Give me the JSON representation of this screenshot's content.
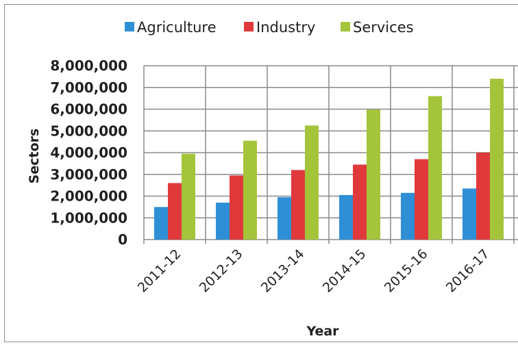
{
  "chart_data": {
    "type": "bar",
    "categories": [
      "2011-12",
      "2012-13",
      "2013-14",
      "2014-15",
      "2015-16",
      "2016-17"
    ],
    "series": [
      {
        "name": "Agriculture",
        "color": "#2f8fd6",
        "values": [
          1500000,
          1700000,
          1950000,
          2050000,
          2150000,
          2350000
        ]
      },
      {
        "name": "Industry",
        "color": "#e0393b",
        "values": [
          2600000,
          2950000,
          3200000,
          3450000,
          3700000,
          4000000
        ]
      },
      {
        "name": "Services",
        "color": "#a4c43a",
        "values": [
          3950000,
          4550000,
          5250000,
          5980000,
          6600000,
          7400000
        ]
      }
    ],
    "xlabel": "Year",
    "ylabel": "Sectors",
    "ylim": [
      0,
      8000000
    ],
    "yticks": [
      0,
      1000000,
      2000000,
      3000000,
      4000000,
      5000000,
      6000000,
      7000000,
      8000000
    ],
    "ytick_labels": [
      "0",
      "1,000,000",
      "2,000,000",
      "3,000,000",
      "4,000,000",
      "5,000,000",
      "6,000,000",
      "7,000,000",
      "8,000,000"
    ],
    "grid": true,
    "legend_position": "top"
  }
}
